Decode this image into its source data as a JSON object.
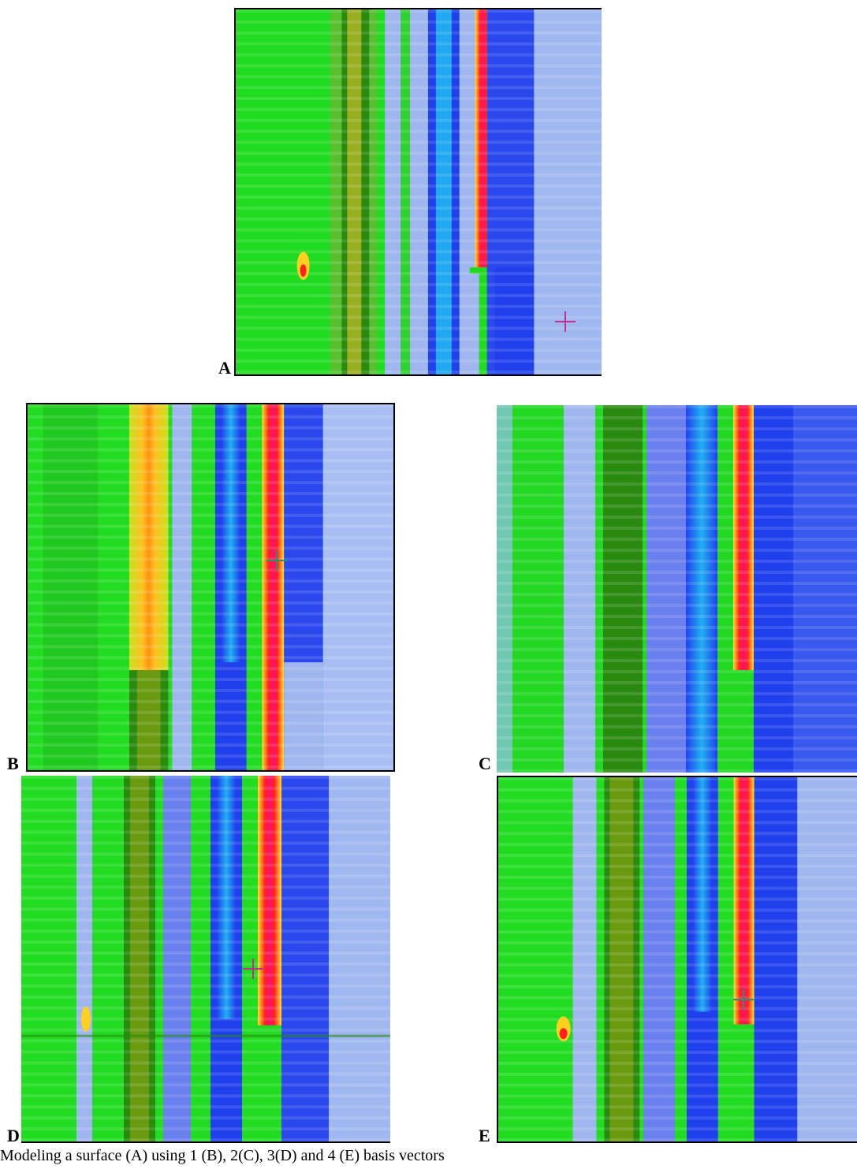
{
  "panels": [
    {
      "id": "A",
      "label": "A",
      "cursor_color": "#c03090"
    },
    {
      "id": "B",
      "label": "B",
      "cursor_color": "#2f8f6a"
    },
    {
      "id": "C",
      "label": "C",
      "cursor_color": null
    },
    {
      "id": "D",
      "label": "D",
      "cursor_color": "#c03090"
    },
    {
      "id": "E",
      "label": "E",
      "cursor_color": "#2f8f6a"
    }
  ],
  "caption": "Modeling a surface (A) using 1 (B), 2(C), 3(D) and 4 (E) basis vectors",
  "colors": {
    "green": "#22dd22",
    "dark_green": "#2a8a10",
    "light_blue": "#9fb6ee",
    "blue": "#2040ee",
    "cyan": "#20a8f0",
    "red": "#ff2020",
    "yellow": "#ffe020"
  }
}
